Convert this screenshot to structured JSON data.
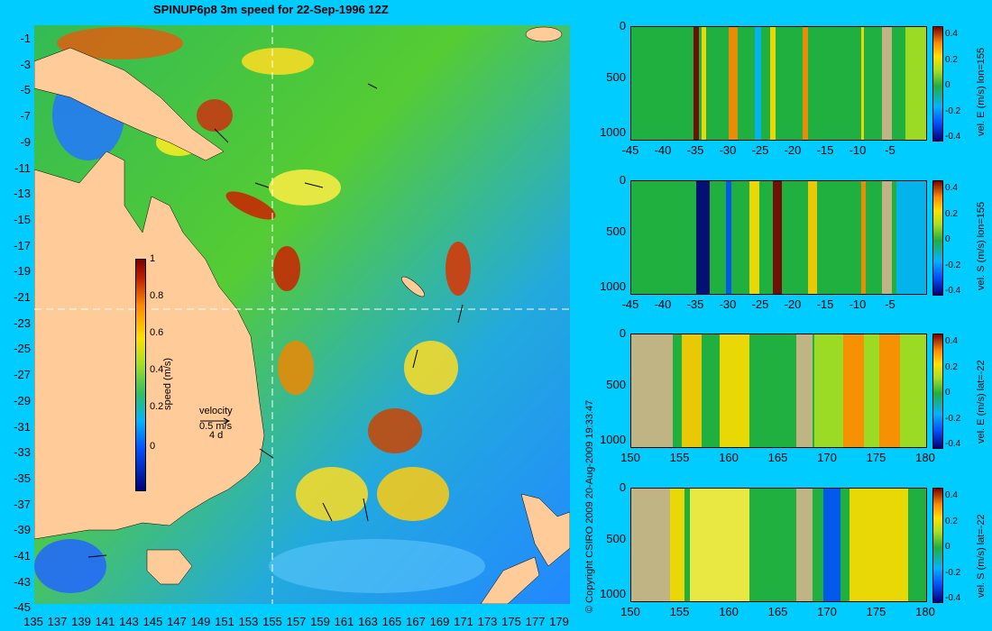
{
  "title": "SPINUP6p8 3m speed for 22-Sep-1996 12Z",
  "copyright": "© Copyright CSIRO 2009    20-Aug-2009 19:33:47",
  "map": {
    "lat_ticks": [
      "-1",
      "-3",
      "-5",
      "-7",
      "-9",
      "-11",
      "-13",
      "-15",
      "-17",
      "-19",
      "-21",
      "-23",
      "-25",
      "-27",
      "-29",
      "-31",
      "-33",
      "-35",
      "-37",
      "-39",
      "-41",
      "-43",
      "-45"
    ],
    "lon_ticks": [
      "135",
      "137",
      "139",
      "141",
      "143",
      "145",
      "147",
      "149",
      "151",
      "153",
      "155",
      "157",
      "159",
      "161",
      "163",
      "165",
      "167",
      "169",
      "171",
      "173",
      "175",
      "177",
      "179"
    ],
    "colorbar": {
      "ticks": [
        "1",
        "0.8",
        "0.6",
        "0.4",
        "0.2",
        "0"
      ],
      "label": "speed (m/s)"
    },
    "legend": {
      "title": "velocity",
      "speed": "0.5 m/s",
      "duration": "4 d"
    }
  },
  "panels": [
    {
      "label": "vel. E (m/s) lon=155",
      "x_ticks": [
        "-45",
        "-40",
        "-35",
        "-30",
        "-25",
        "-20",
        "-15",
        "-10",
        "-5"
      ],
      "y_ticks": [
        "0",
        "500",
        "1000"
      ],
      "cbar_ticks": [
        "0.4",
        "0.2",
        "0",
        "-0.2",
        "-0.4"
      ]
    },
    {
      "label": "vel. S (m/s) lon=155",
      "x_ticks": [
        "-45",
        "-40",
        "-35",
        "-30",
        "-25",
        "-20",
        "-15",
        "-10",
        "-5"
      ],
      "y_ticks": [
        "0",
        "500",
        "1000"
      ],
      "cbar_ticks": [
        "0.4",
        "0.2",
        "0",
        "-0.2",
        "-0.4"
      ]
    },
    {
      "label": "vel. E (m/s) lat=-22",
      "x_ticks": [
        "150",
        "155",
        "160",
        "165",
        "170",
        "175",
        "180"
      ],
      "y_ticks": [
        "0",
        "500",
        "1000"
      ],
      "cbar_ticks": [
        "0.4",
        "0.2",
        "0",
        "-0.2",
        "-0.4"
      ]
    },
    {
      "label": "vel. S (m/s) lat=-22",
      "x_ticks": [
        "150",
        "155",
        "160",
        "165",
        "170",
        "175",
        "180"
      ],
      "y_ticks": [
        "0",
        "500",
        "1000"
      ],
      "cbar_ticks": [
        "0.4",
        "0.2",
        "0",
        "-0.2",
        "-0.4"
      ]
    }
  ],
  "colors": {
    "background": "#00ccff",
    "land": "#ffcc99",
    "section_land": "#d2b48c"
  }
}
